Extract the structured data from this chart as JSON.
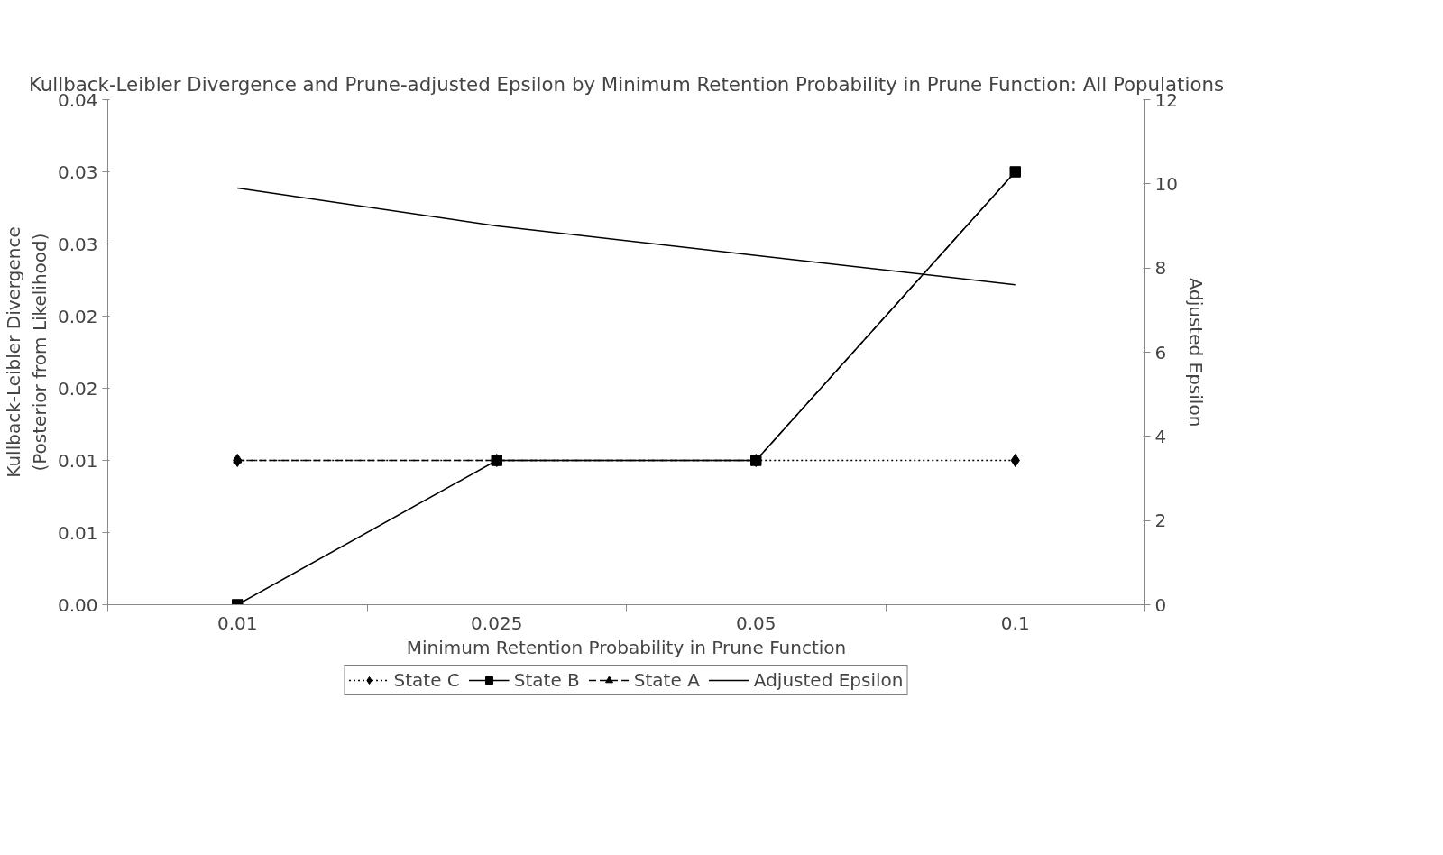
{
  "chart_data": {
    "type": "line",
    "title": "Kullback-Leibler Divergence and Prune-adjusted Epsilon by Minimum Retention Probability in Prune Function: All Populations",
    "xlabel": "Minimum Retention Probability in Prune Function",
    "ylabel": "Kullback-Leibler Divergence (Posterior from Likelihood)",
    "y2label": "Adjusted Epsilon",
    "categories": [
      "0.01",
      "0.025",
      "0.05",
      "0.1"
    ],
    "ylim": [
      0,
      0.035
    ],
    "yticks": [
      {
        "value": 0,
        "label": "0.00"
      },
      {
        "value": 0.005,
        "label": "0.01"
      },
      {
        "value": 0.01,
        "label": "0.01"
      },
      {
        "value": 0.015,
        "label": "0.02"
      },
      {
        "value": 0.02,
        "label": "0.02"
      },
      {
        "value": 0.025,
        "label": "0.03"
      },
      {
        "value": 0.03,
        "label": "0.03"
      },
      {
        "value": 0.035,
        "label": "0.04"
      }
    ],
    "y2lim": [
      0,
      12
    ],
    "y2ticks": [
      0,
      2,
      4,
      6,
      8,
      10,
      12
    ],
    "grid": false,
    "legend": "bottom",
    "series": [
      {
        "name": "State C",
        "color": "#000000",
        "marker": "diamond",
        "line_style": "dotted",
        "values": [
          0.01,
          0.01,
          0.01,
          0.01
        ]
      },
      {
        "name": "State B",
        "color": "#000000",
        "marker": "square",
        "line_style": "solid",
        "values": [
          0,
          0.01,
          0.01,
          0.03
        ]
      },
      {
        "name": "State A",
        "color": "#000000",
        "marker": "triangle",
        "line_style": "dashed",
        "values": [
          0.01,
          0.01,
          0.01,
          0.03
        ]
      },
      {
        "name": "Adjusted Epsilon",
        "color": "#000000",
        "marker": "none",
        "line_style": "solid",
        "axis": "y2",
        "values": [
          9.9,
          9.0,
          8.3,
          7.6
        ]
      }
    ]
  }
}
